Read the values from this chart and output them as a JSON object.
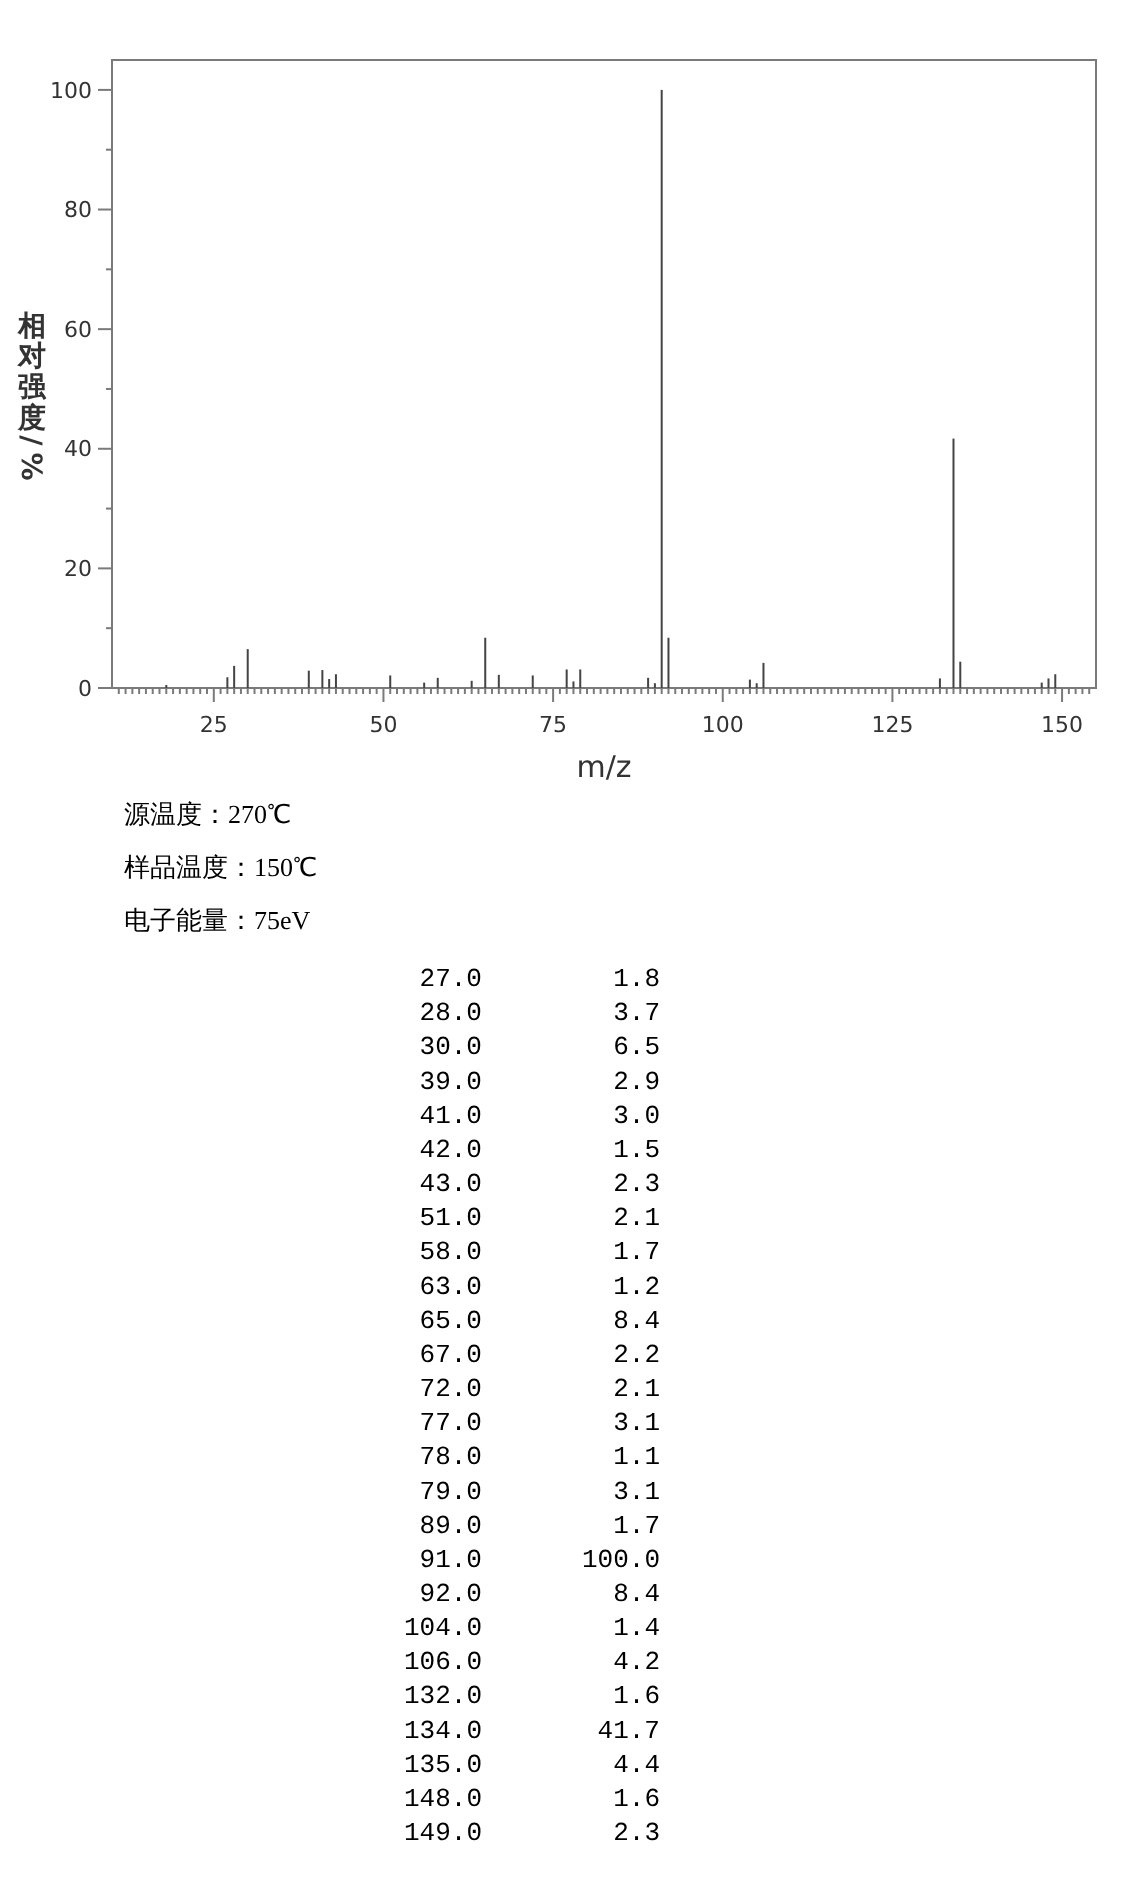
{
  "chart_data": [
    {
      "type": "bar",
      "xlabel": "m/z",
      "ylabel": "相对强度/%",
      "x": [
        18.0,
        27.0,
        28.0,
        30.0,
        39.0,
        41.0,
        42.0,
        43.0,
        51.0,
        56.0,
        58.0,
        63.0,
        65.0,
        67.0,
        72.0,
        77.0,
        78.0,
        79.0,
        89.0,
        90.0,
        91.0,
        92.0,
        104.0,
        105.0,
        106.0,
        132.0,
        134.0,
        135.0,
        147.0,
        148.0,
        149.0
      ],
      "values": [
        0.5,
        1.8,
        3.7,
        6.5,
        2.9,
        3.0,
        1.5,
        2.3,
        2.1,
        0.9,
        1.7,
        1.2,
        8.4,
        2.2,
        2.1,
        3.1,
        1.1,
        3.1,
        1.7,
        0.8,
        100.0,
        8.4,
        1.4,
        0.8,
        4.2,
        1.6,
        41.7,
        4.4,
        0.9,
        1.6,
        2.3
      ],
      "color": "#444444",
      "xlim": [
        10,
        155
      ],
      "ylim": [
        0,
        105
      ],
      "xticks": [
        {
          "value": 11,
          "label": null
        },
        {
          "value": 12,
          "label": null
        },
        {
          "value": 13,
          "label": null
        },
        {
          "value": 14,
          "label": null
        },
        {
          "value": 15,
          "label": null
        },
        {
          "value": 16,
          "label": null
        },
        {
          "value": 17,
          "label": null
        },
        {
          "value": 18,
          "label": null
        },
        {
          "value": 19,
          "label": null
        },
        {
          "value": 20,
          "label": null
        },
        {
          "value": 21,
          "label": null
        },
        {
          "value": 22,
          "label": null
        },
        {
          "value": 23,
          "label": null
        },
        {
          "value": 24,
          "label": null
        },
        25,
        {
          "value": 26,
          "label": null
        },
        {
          "value": 27,
          "label": null
        },
        {
          "value": 28,
          "label": null
        },
        {
          "value": 29,
          "label": null
        },
        {
          "value": 30,
          "label": null
        },
        {
          "value": 31,
          "label": null
        },
        {
          "value": 32,
          "label": null
        },
        {
          "value": 33,
          "label": null
        },
        {
          "value": 34,
          "label": null
        },
        {
          "value": 35,
          "label": null
        },
        {
          "value": 36,
          "label": null
        },
        {
          "value": 37,
          "label": null
        },
        {
          "value": 38,
          "label": null
        },
        {
          "value": 39,
          "label": null
        },
        {
          "value": 40,
          "label": null
        },
        {
          "value": 41,
          "label": null
        },
        {
          "value": 42,
          "label": null
        },
        {
          "value": 43,
          "label": null
        },
        {
          "value": 44,
          "label": null
        },
        {
          "value": 45,
          "label": null
        },
        {
          "value": 46,
          "label": null
        },
        {
          "value": 47,
          "label": null
        },
        {
          "value": 48,
          "label": null
        },
        {
          "value": 49,
          "label": null
        },
        50,
        {
          "value": 51,
          "label": null
        },
        {
          "value": 52,
          "label": null
        },
        {
          "value": 53,
          "label": null
        },
        {
          "value": 54,
          "label": null
        },
        {
          "value": 55,
          "label": null
        },
        {
          "value": 56,
          "label": null
        },
        {
          "value": 57,
          "label": null
        },
        {
          "value": 58,
          "label": null
        },
        {
          "value": 59,
          "label": null
        },
        {
          "value": 60,
          "label": null
        },
        {
          "value": 61,
          "label": null
        },
        {
          "value": 62,
          "label": null
        },
        {
          "value": 63,
          "label": null
        },
        {
          "value": 64,
          "label": null
        },
        {
          "value": 65,
          "label": null
        },
        {
          "value": 66,
          "label": null
        },
        {
          "value": 67,
          "label": null
        },
        {
          "value": 68,
          "label": null
        },
        {
          "value": 69,
          "label": null
        },
        {
          "value": 70,
          "label": null
        },
        {
          "value": 71,
          "label": null
        },
        {
          "value": 72,
          "label": null
        },
        {
          "value": 73,
          "label": null
        },
        {
          "value": 74,
          "label": null
        },
        75,
        {
          "value": 76,
          "label": null
        },
        {
          "value": 77,
          "label": null
        },
        {
          "value": 78,
          "label": null
        },
        {
          "value": 79,
          "label": null
        },
        {
          "value": 80,
          "label": null
        },
        {
          "value": 81,
          "label": null
        },
        {
          "value": 82,
          "label": null
        },
        {
          "value": 83,
          "label": null
        },
        {
          "value": 84,
          "label": null
        },
        {
          "value": 85,
          "label": null
        },
        {
          "value": 86,
          "label": null
        },
        {
          "value": 87,
          "label": null
        },
        {
          "value": 88,
          "label": null
        },
        {
          "value": 89,
          "label": null
        },
        {
          "value": 90,
          "label": null
        },
        {
          "value": 91,
          "label": null
        },
        {
          "value": 92,
          "label": null
        },
        {
          "value": 93,
          "label": null
        },
        {
          "value": 94,
          "label": null
        },
        {
          "value": 95,
          "label": null
        },
        {
          "value": 96,
          "label": null
        },
        {
          "value": 97,
          "label": null
        },
        {
          "value": 98,
          "label": null
        },
        {
          "value": 99,
          "label": null
        },
        100,
        {
          "value": 101,
          "label": null
        },
        {
          "value": 102,
          "label": null
        },
        {
          "value": 103,
          "label": null
        },
        {
          "value": 104,
          "label": null
        },
        {
          "value": 105,
          "label": null
        },
        {
          "value": 106,
          "label": null
        },
        {
          "value": 107,
          "label": null
        },
        {
          "value": 108,
          "label": null
        },
        {
          "value": 109,
          "label": null
        },
        {
          "value": 110,
          "label": null
        },
        {
          "value": 111,
          "label": null
        },
        {
          "value": 112,
          "label": null
        },
        {
          "value": 113,
          "label": null
        },
        {
          "value": 114,
          "label": null
        },
        {
          "value": 115,
          "label": null
        },
        {
          "value": 116,
          "label": null
        },
        {
          "value": 117,
          "label": null
        },
        {
          "value": 118,
          "label": null
        },
        {
          "value": 119,
          "label": null
        },
        {
          "value": 120,
          "label": null
        },
        {
          "value": 121,
          "label": null
        },
        {
          "value": 122,
          "label": null
        },
        {
          "value": 123,
          "label": null
        },
        {
          "value": 124,
          "label": null
        },
        125,
        {
          "value": 126,
          "label": null
        },
        {
          "value": 127,
          "label": null
        },
        {
          "value": 128,
          "label": null
        },
        {
          "value": 129,
          "label": null
        },
        {
          "value": 130,
          "label": null
        },
        {
          "value": 131,
          "label": null
        },
        {
          "value": 132,
          "label": null
        },
        {
          "value": 133,
          "label": null
        },
        {
          "value": 134,
          "label": null
        },
        {
          "value": 135,
          "label": null
        },
        {
          "value": 136,
          "label": null
        },
        {
          "value": 137,
          "label": null
        },
        {
          "value": 138,
          "label": null
        },
        {
          "value": 139,
          "label": null
        },
        {
          "value": 140,
          "label": null
        },
        {
          "value": 141,
          "label": null
        },
        {
          "value": 142,
          "label": null
        },
        {
          "value": 143,
          "label": null
        },
        {
          "value": 144,
          "label": null
        },
        {
          "value": 145,
          "label": null
        },
        {
          "value": 146,
          "label": null
        },
        {
          "value": 147,
          "label": null
        },
        {
          "value": 148,
          "label": null
        },
        {
          "value": 149,
          "label": null
        },
        150,
        {
          "value": 151,
          "label": null
        },
        {
          "value": 152,
          "label": null
        },
        {
          "value": 153,
          "label": null
        },
        {
          "value": 154,
          "label": null
        }
      ],
      "yticks": [
        0,
        {
          "value": 10,
          "label": null
        },
        20,
        {
          "value": 30,
          "label": null
        },
        40,
        {
          "value": 50,
          "label": null
        },
        60,
        {
          "value": 70,
          "label": null
        },
        80,
        {
          "value": 90,
          "label": null
        },
        100
      ],
      "annotations": [
        "源温度：270℃",
        "样品温度：150℃",
        "电子能量：75eV"
      ]
    },
    {
      "type": "other",
      "categories": [
        "27.0",
        "28.0",
        "30.0",
        "39.0",
        "41.0",
        "42.0",
        "43.0",
        "51.0",
        "58.0",
        "63.0",
        "65.0",
        "67.0",
        "72.0",
        "77.0",
        "78.0",
        "79.0",
        "89.0",
        "91.0",
        "92.0",
        "104.0",
        "106.0",
        "132.0",
        "134.0",
        "135.0",
        "148.0",
        "149.0"
      ],
      "value_labels": [
        "1.8",
        "3.7",
        "6.5",
        "2.9",
        "3.0",
        "1.5",
        "2.3",
        "2.1",
        "1.7",
        "1.2",
        "8.4",
        "2.2",
        "2.1",
        "3.1",
        "1.1",
        "3.1",
        "1.7",
        "100.0",
        "8.4",
        "1.4",
        "4.2",
        "1.6",
        "41.7",
        "4.4",
        "1.6",
        "2.3"
      ]
    }
  ]
}
